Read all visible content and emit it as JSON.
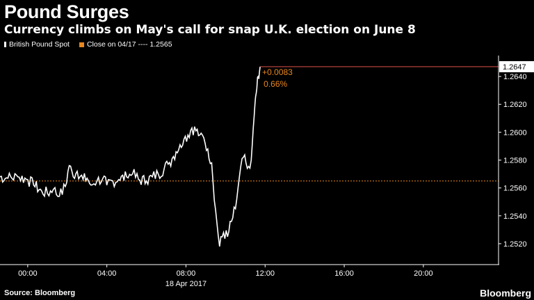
{
  "header": {
    "title": "Pound Surges",
    "subtitle": "Currency climbs on May's call for snap U.K. election on June 8"
  },
  "legend": {
    "series_label": "British Pound Spot",
    "reference_label": "Close on 04/17 ---- 1.2565"
  },
  "footer": {
    "source": "Source: Bloomberg",
    "brand": "Bloomberg"
  },
  "colors": {
    "background": "#000000",
    "series": "#ffffff",
    "reference": "#e8871e",
    "last_line": "#e4554d",
    "axis": "#ffffff"
  },
  "chart_data": {
    "type": "line",
    "title": "Pound Surges",
    "xlabel": "18 Apr 2017",
    "ylabel": "",
    "x_ticks": [
      "00:00",
      "04:00",
      "08:00",
      "12:00",
      "16:00",
      "20:00"
    ],
    "y_ticks": [
      "1.2640",
      "1.2620",
      "1.2600",
      "1.2580",
      "1.2560",
      "1.2540",
      "1.2520"
    ],
    "ylim": [
      1.2505,
      1.2655
    ],
    "xlim_hours": [
      -1.4,
      23.8
    ],
    "reference_value": 1.2565,
    "last_value": 1.2647,
    "last_label": "1.2647",
    "change_label": "+0.0083",
    "change_pct_label": "0.66%",
    "series": [
      {
        "name": "British Pound Spot",
        "x_hours": [
          -1.4,
          -1.0,
          -0.5,
          0.0,
          0.3,
          0.7,
          1.0,
          1.3,
          1.6,
          1.9,
          2.1,
          2.3,
          2.5,
          2.8,
          3.0,
          3.2,
          3.5,
          3.8,
          4.0,
          4.3,
          4.6,
          5.0,
          5.3,
          5.6,
          6.0,
          6.3,
          6.6,
          6.9,
          7.1,
          7.3,
          7.5,
          7.7,
          7.9,
          8.1,
          8.3,
          8.5,
          8.7,
          8.9,
          9.1,
          9.3,
          9.5,
          9.7,
          9.9,
          10.1,
          10.3,
          10.5,
          10.7,
          10.9,
          11.1,
          11.3,
          11.45,
          11.55,
          11.65,
          11.75
        ],
        "values": [
          1.2568,
          1.2567,
          1.2568,
          1.2566,
          1.2562,
          1.2558,
          1.2556,
          1.2559,
          1.2554,
          1.2561,
          1.2576,
          1.2568,
          1.2572,
          1.2566,
          1.2567,
          1.2562,
          1.2565,
          1.2567,
          1.2562,
          1.2565,
          1.2566,
          1.2568,
          1.257,
          1.2566,
          1.2565,
          1.2568,
          1.257,
          1.2574,
          1.2577,
          1.2581,
          1.2586,
          1.2591,
          1.2595,
          1.2598,
          1.2603,
          1.2601,
          1.2598,
          1.2596,
          1.2588,
          1.2578,
          1.2544,
          1.2518,
          1.2528,
          1.2525,
          1.2536,
          1.2545,
          1.2568,
          1.2582,
          1.2574,
          1.258,
          1.2612,
          1.2628,
          1.264,
          1.2647
        ]
      }
    ]
  }
}
